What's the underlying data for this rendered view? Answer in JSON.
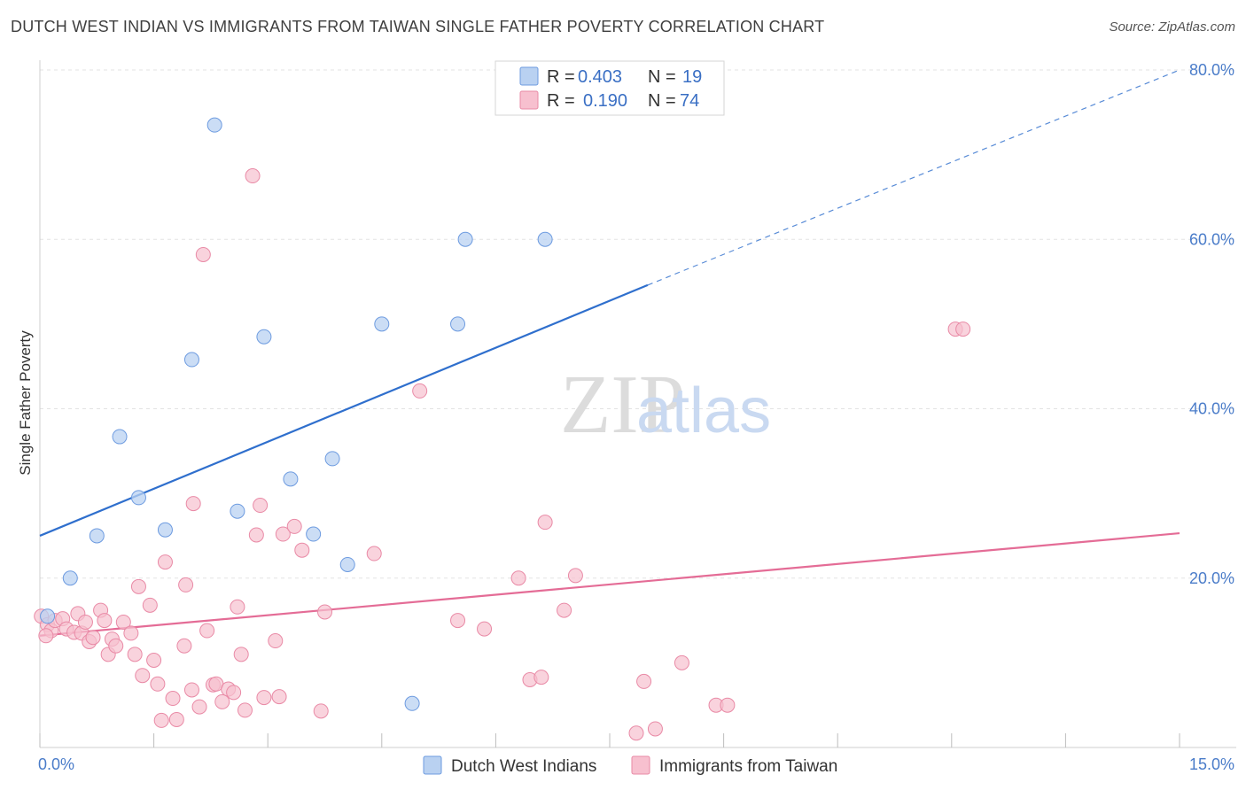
{
  "title": "DUTCH WEST INDIAN VS IMMIGRANTS FROM TAIWAN SINGLE FATHER POVERTY CORRELATION CHART",
  "source": "Source: ZipAtlas.com",
  "watermark": {
    "zip": "ZIP",
    "atlas": "atlas"
  },
  "colors": {
    "blue_fill": "#b9d1f1",
    "blue_stroke": "#6d9be0",
    "blue_line": "#2f6fcd",
    "pink_fill": "#f7c0cf",
    "pink_stroke": "#e98aa6",
    "pink_line": "#e46c96",
    "grid": "#e3e3e3",
    "axis_text": "#4a7cc9"
  },
  "legend": {
    "rows": [
      {
        "r_label": "R =",
        "r_value": "0.403",
        "n_label": "N =",
        "n_value": "19"
      },
      {
        "r_label": "R =",
        "r_value": "0.190",
        "n_label": "N =",
        "n_value": "74"
      }
    ]
  },
  "chart_data": {
    "type": "scatter",
    "title": "DUTCH WEST INDIAN VS IMMIGRANTS FROM TAIWAN SINGLE FATHER POVERTY CORRELATION CHART",
    "xlabel": "",
    "ylabel": "Single Father Poverty",
    "xlim": [
      0,
      15
    ],
    "ylim": [
      0,
      80
    ],
    "x_tick_labels": [
      "0.0%",
      "15.0%"
    ],
    "y_ticks": [
      20,
      40,
      60,
      80
    ],
    "y_tick_labels": [
      "20.0%",
      "40.0%",
      "60.0%",
      "80.0%"
    ],
    "grid": true,
    "legend_position": "top-center",
    "series": [
      {
        "name": "Dutch West Indians",
        "color": "#6d9be0",
        "R": 0.403,
        "N": 19,
        "trend": {
          "x": [
            0,
            8
          ],
          "y": [
            25.0,
            54.6
          ],
          "extended_to": [
            15,
            80.0
          ]
        },
        "points": [
          [
            0.1,
            15.5
          ],
          [
            0.4,
            20.0
          ],
          [
            0.75,
            25.0
          ],
          [
            1.05,
            36.7
          ],
          [
            1.3,
            29.5
          ],
          [
            1.65,
            25.7
          ],
          [
            2.0,
            45.8
          ],
          [
            2.3,
            73.5
          ],
          [
            2.6,
            27.9
          ],
          [
            2.95,
            48.5
          ],
          [
            3.3,
            31.7
          ],
          [
            3.6,
            25.2
          ],
          [
            3.85,
            34.1
          ],
          [
            4.05,
            21.6
          ],
          [
            4.5,
            50.0
          ],
          [
            4.9,
            5.2
          ],
          [
            5.5,
            50.0
          ],
          [
            5.6,
            60.0
          ],
          [
            6.65,
            60.0
          ]
        ]
      },
      {
        "name": "Immigrants from Taiwan",
        "color": "#e98aa6",
        "R": 0.19,
        "N": 74,
        "trend": {
          "x": [
            0,
            15
          ],
          "y": [
            13.2,
            25.3
          ]
        },
        "points": [
          [
            0.02,
            15.5
          ],
          [
            0.1,
            14.5
          ],
          [
            0.15,
            13.8
          ],
          [
            0.2,
            15.0
          ],
          [
            0.3,
            15.2
          ],
          [
            0.35,
            14.0
          ],
          [
            0.45,
            13.6
          ],
          [
            0.5,
            15.8
          ],
          [
            0.55,
            13.5
          ],
          [
            0.6,
            14.8
          ],
          [
            0.65,
            12.5
          ],
          [
            0.7,
            13.0
          ],
          [
            0.8,
            16.2
          ],
          [
            0.85,
            15.0
          ],
          [
            0.9,
            11.0
          ],
          [
            0.95,
            12.8
          ],
          [
            1.0,
            12.0
          ],
          [
            1.1,
            14.8
          ],
          [
            1.2,
            13.5
          ],
          [
            1.25,
            11.0
          ],
          [
            1.3,
            19.0
          ],
          [
            1.35,
            8.5
          ],
          [
            1.45,
            16.8
          ],
          [
            1.5,
            10.3
          ],
          [
            1.55,
            7.5
          ],
          [
            1.6,
            3.2
          ],
          [
            1.65,
            21.9
          ],
          [
            1.75,
            5.8
          ],
          [
            1.8,
            3.3
          ],
          [
            1.9,
            12.0
          ],
          [
            1.92,
            19.2
          ],
          [
            2.0,
            6.8
          ],
          [
            2.02,
            28.8
          ],
          [
            2.1,
            4.8
          ],
          [
            2.15,
            58.2
          ],
          [
            2.2,
            13.8
          ],
          [
            2.28,
            7.4
          ],
          [
            2.32,
            7.5
          ],
          [
            2.4,
            5.4
          ],
          [
            2.48,
            6.9
          ],
          [
            2.55,
            6.5
          ],
          [
            2.6,
            16.6
          ],
          [
            2.65,
            11.0
          ],
          [
            2.7,
            4.4
          ],
          [
            2.8,
            67.5
          ],
          [
            2.85,
            25.1
          ],
          [
            2.9,
            28.6
          ],
          [
            2.95,
            5.9
          ],
          [
            3.1,
            12.6
          ],
          [
            3.15,
            6.0
          ],
          [
            3.2,
            25.2
          ],
          [
            3.35,
            26.1
          ],
          [
            3.45,
            23.3
          ],
          [
            3.7,
            4.3
          ],
          [
            3.75,
            16.0
          ],
          [
            4.4,
            22.9
          ],
          [
            5.0,
            42.1
          ],
          [
            5.5,
            15.0
          ],
          [
            5.85,
            14.0
          ],
          [
            6.3,
            20.0
          ],
          [
            6.45,
            8.0
          ],
          [
            6.6,
            8.3
          ],
          [
            6.65,
            26.6
          ],
          [
            6.9,
            16.2
          ],
          [
            7.05,
            20.3
          ],
          [
            7.85,
            1.7
          ],
          [
            7.95,
            7.8
          ],
          [
            8.1,
            2.2
          ],
          [
            8.45,
            10.0
          ],
          [
            8.9,
            5.0
          ],
          [
            9.05,
            5.0
          ],
          [
            12.05,
            49.4
          ],
          [
            12.15,
            49.4
          ],
          [
            0.08,
            13.2
          ]
        ]
      }
    ]
  }
}
